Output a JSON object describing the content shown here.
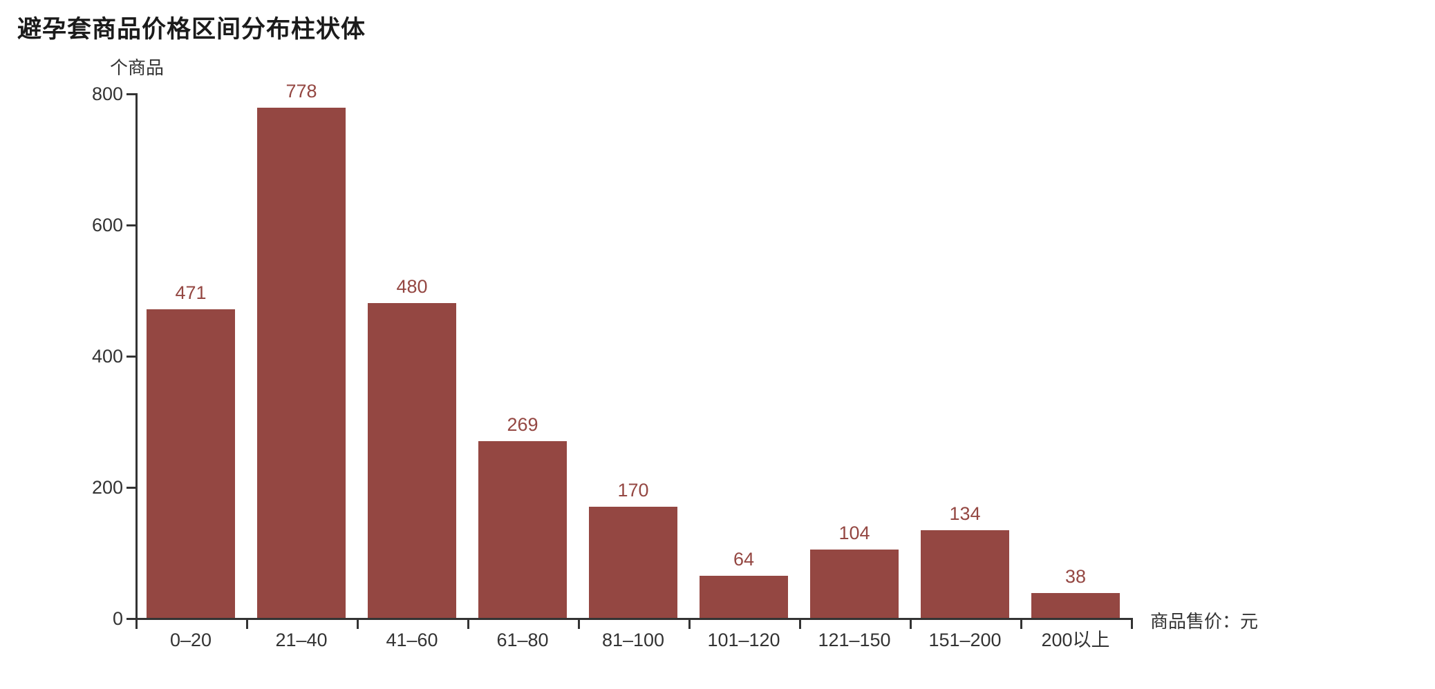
{
  "chart_data": {
    "type": "bar",
    "title": "避孕套商品价格区间分布柱状体",
    "y_unit_label": "个商品",
    "x_axis_label": "商品售价：元",
    "categories": [
      "0–20",
      "21–40",
      "41–60",
      "61–80",
      "81–100",
      "101–120",
      "121–150",
      "151–200",
      "200以上"
    ],
    "values": [
      471,
      778,
      480,
      269,
      170,
      64,
      104,
      134,
      38
    ],
    "y_ticks": [
      0,
      200,
      400,
      600,
      800
    ],
    "ylim": [
      0,
      800
    ],
    "grid": false,
    "legend": "none",
    "value_labels_position": "above-bars",
    "colors": {
      "bar": "#944742",
      "value_label": "#944742",
      "axis": "#333333",
      "tick_label": "#333333",
      "title": "#1b1b1b",
      "background": "#ffffff"
    }
  }
}
